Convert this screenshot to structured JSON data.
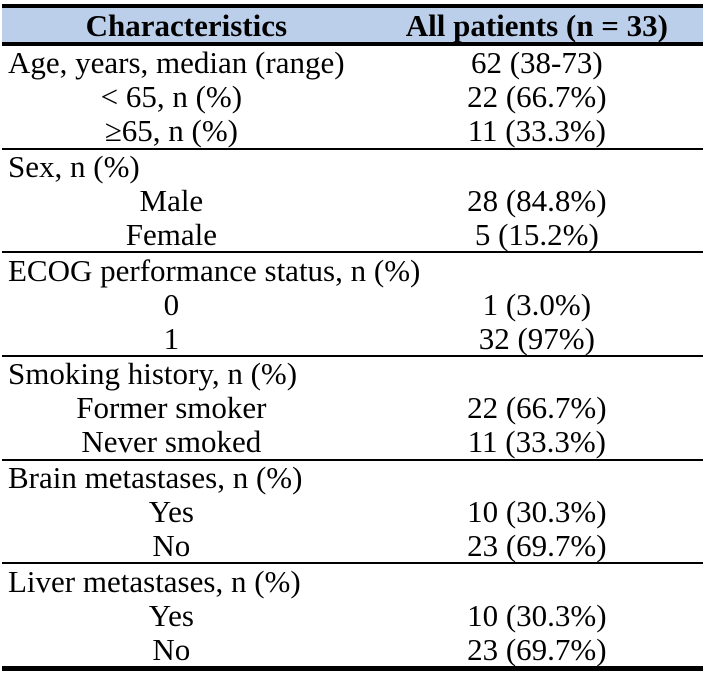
{
  "table": {
    "header": {
      "col1": "Characteristics",
      "col2": "All patients (n = 33)"
    },
    "colors": {
      "header_bg": "#bccfea",
      "border": "#000000",
      "text": "#000000"
    },
    "sections": [
      {
        "rows": [
          {
            "label": "Age, years, median (range)",
            "value": "62 (38-73)",
            "indent": false
          },
          {
            "label": "< 65, n (%)",
            "value": "22 (66.7%)",
            "indent": true
          },
          {
            "label": "≥65, n (%)",
            "value": "11 (33.3%)",
            "indent": true
          }
        ]
      },
      {
        "rows": [
          {
            "label": "Sex, n (%)",
            "value": "",
            "indent": false
          },
          {
            "label": "Male",
            "value": "28 (84.8%)",
            "indent": true
          },
          {
            "label": "Female",
            "value": "5 (15.2%)",
            "indent": true
          }
        ]
      },
      {
        "rows": [
          {
            "label": "ECOG performance status, n (%)",
            "value": "",
            "indent": false
          },
          {
            "label": "0",
            "value": "1 (3.0%)",
            "indent": true
          },
          {
            "label": "1",
            "value": "32 (97%)",
            "indent": true
          }
        ]
      },
      {
        "rows": [
          {
            "label": "Smoking history, n (%)",
            "value": "",
            "indent": false
          },
          {
            "label": "Former smoker",
            "value": "22 (66.7%)",
            "indent": true
          },
          {
            "label": "Never smoked",
            "value": "11 (33.3%)",
            "indent": true
          }
        ]
      },
      {
        "rows": [
          {
            "label": "Brain metastases, n (%)",
            "value": "",
            "indent": false
          },
          {
            "label": "Yes",
            "value": "10 (30.3%)",
            "indent": true
          },
          {
            "label": "No",
            "value": "23 (69.7%)",
            "indent": true
          }
        ]
      },
      {
        "rows": [
          {
            "label": "Liver metastases, n (%)",
            "value": "",
            "indent": false
          },
          {
            "label": "Yes",
            "value": "10 (30.3%)",
            "indent": true
          },
          {
            "label": "No",
            "value": "23 (69.7%)",
            "indent": true
          }
        ]
      }
    ]
  }
}
